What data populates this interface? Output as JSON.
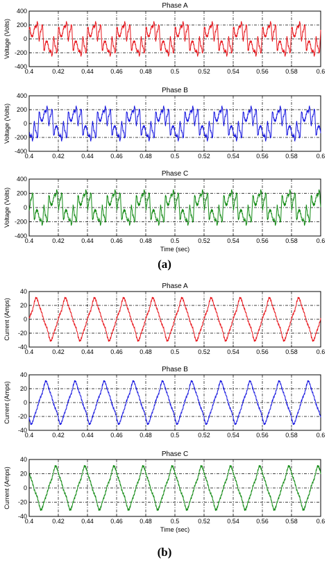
{
  "figure": {
    "caption_a": "(a)",
    "caption_b": "(b)"
  },
  "chart_data": [
    {
      "type": "line",
      "title": "Phase A",
      "xlabel": "",
      "ylabel": "Voltage (Volts)",
      "xlim": [
        0.4,
        0.6
      ],
      "ylim": [
        -400,
        400
      ],
      "xticks": [
        0.4,
        0.42,
        0.44,
        0.46,
        0.48,
        0.5,
        0.52,
        0.54,
        0.56,
        0.58,
        0.6
      ],
      "yticks": [
        -400,
        -200,
        0,
        200,
        400
      ],
      "grid": true,
      "series": [
        {
          "color": "#e8151b",
          "waveform": "distorted_voltage",
          "fundamental_hz": 50,
          "amplitude": 200,
          "phase_deg": 0
        }
      ]
    },
    {
      "type": "line",
      "title": "Phase B",
      "xlabel": "",
      "ylabel": "Voltage (Volts)",
      "xlim": [
        0.4,
        0.6
      ],
      "ylim": [
        -400,
        400
      ],
      "xticks": [
        0.4,
        0.42,
        0.44,
        0.46,
        0.48,
        0.5,
        0.52,
        0.54,
        0.56,
        0.58,
        0.6
      ],
      "yticks": [
        -400,
        -200,
        0,
        200,
        400
      ],
      "grid": true,
      "series": [
        {
          "color": "#1515e0",
          "waveform": "distorted_voltage",
          "fundamental_hz": 50,
          "amplitude": 200,
          "phase_deg": -120
        }
      ]
    },
    {
      "type": "line",
      "title": "Phase C",
      "xlabel": "Time (sec)",
      "ylabel": "Voltage (Volts)",
      "xlim": [
        0.4,
        0.6
      ],
      "ylim": [
        -400,
        400
      ],
      "xticks": [
        0.4,
        0.42,
        0.44,
        0.46,
        0.48,
        0.5,
        0.52,
        0.54,
        0.56,
        0.58,
        0.6
      ],
      "yticks": [
        -400,
        -200,
        0,
        200,
        400
      ],
      "grid": true,
      "series": [
        {
          "color": "#128a14",
          "waveform": "distorted_voltage",
          "fundamental_hz": 50,
          "amplitude": 200,
          "phase_deg": 120
        }
      ]
    },
    {
      "type": "line",
      "title": "Phase A",
      "xlabel": "",
      "ylabel": "Current (Amps)",
      "xlim": [
        0.4,
        0.6
      ],
      "ylim": [
        -40,
        40
      ],
      "xticks": [
        0.4,
        0.42,
        0.44,
        0.46,
        0.48,
        0.5,
        0.52,
        0.54,
        0.56,
        0.58,
        0.6
      ],
      "yticks": [
        -40,
        -20,
        0,
        20,
        40
      ],
      "grid": true,
      "series": [
        {
          "color": "#e8151b",
          "waveform": "distorted_current",
          "fundamental_hz": 50,
          "amplitude": 25,
          "phase_deg": 0
        }
      ]
    },
    {
      "type": "line",
      "title": "Phase B",
      "xlabel": "",
      "ylabel": "Current (Amps)",
      "xlim": [
        0.4,
        0.6
      ],
      "ylim": [
        -40,
        40
      ],
      "xticks": [
        0.4,
        0.42,
        0.44,
        0.46,
        0.48,
        0.5,
        0.52,
        0.54,
        0.56,
        0.58,
        0.6
      ],
      "yticks": [
        -40,
        -20,
        0,
        20,
        40
      ],
      "grid": true,
      "series": [
        {
          "color": "#1515e0",
          "waveform": "distorted_current",
          "fundamental_hz": 50,
          "amplitude": 25,
          "phase_deg": -120
        }
      ]
    },
    {
      "type": "line",
      "title": "Phase C",
      "xlabel": "Time (sec)",
      "ylabel": "Current (Amps)",
      "xlim": [
        0.4,
        0.6
      ],
      "ylim": [
        -40,
        40
      ],
      "xticks": [
        0.4,
        0.42,
        0.44,
        0.46,
        0.48,
        0.5,
        0.52,
        0.54,
        0.56,
        0.58,
        0.6
      ],
      "yticks": [
        -40,
        -20,
        0,
        20,
        40
      ],
      "grid": true,
      "series": [
        {
          "color": "#128a14",
          "waveform": "distorted_current",
          "fundamental_hz": 50,
          "amplitude": 25,
          "phase_deg": 120
        }
      ]
    }
  ]
}
